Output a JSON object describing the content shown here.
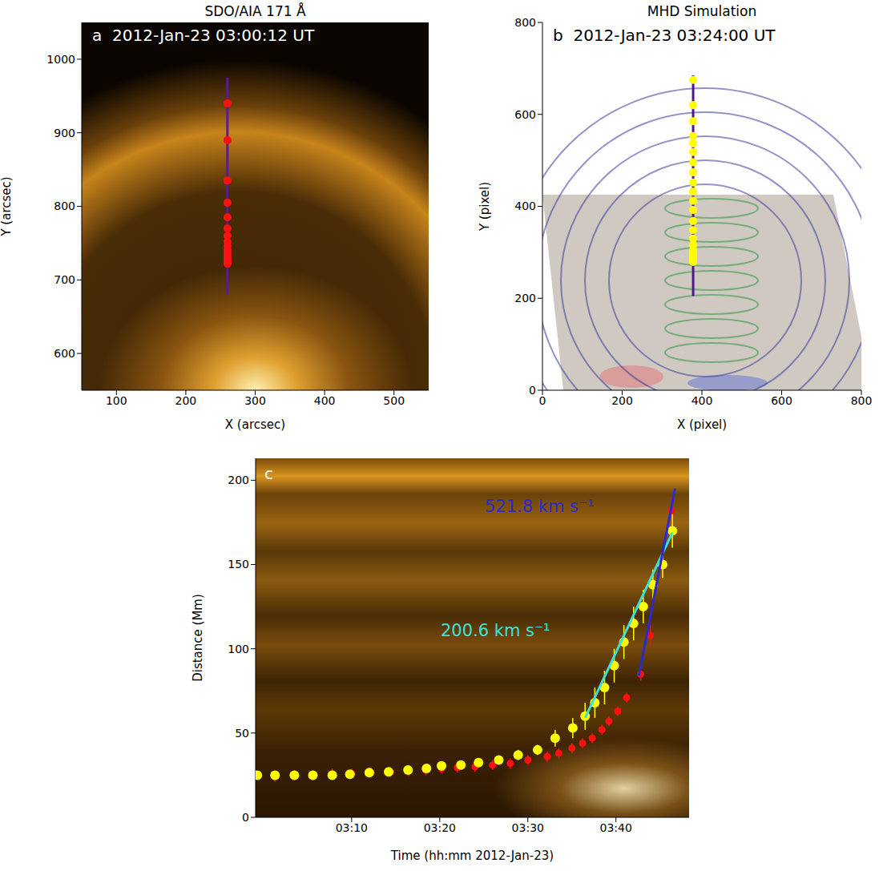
{
  "chart_data": [
    {
      "type": "scatter",
      "panel": "a",
      "title": "SDO/AIA 171 Å",
      "annotation": "2012-Jan-23 03:00:12 UT",
      "x_label": "X (arcsec)",
      "y_label": "Y (arcsec)",
      "xlim": [
        50,
        550
      ],
      "xticks": [
        100,
        200,
        300,
        400,
        500
      ],
      "ylim": [
        550,
        1050
      ],
      "yticks": [
        600,
        700,
        800,
        900,
        1000
      ],
      "series": [
        {
          "type": "line",
          "color": "#5a1e8c",
          "x": [
            260,
            260
          ],
          "values": [
            680,
            975
          ]
        },
        {
          "type": "scatter",
          "marker": "circle",
          "color": "#ff1010",
          "x": [
            260,
            260,
            260,
            260,
            260,
            260,
            260,
            260,
            260,
            260,
            260,
            260,
            260,
            260,
            260,
            260
          ],
          "values": [
            940,
            890,
            835,
            805,
            785,
            770,
            760,
            752,
            746,
            741,
            737,
            733,
            730,
            727,
            724,
            722
          ]
        }
      ]
    },
    {
      "type": "scatter",
      "panel": "b",
      "title": "MHD Simulation",
      "annotation": "2012-Jan-23 03:24:00 UT",
      "x_label": "X (pixel)",
      "y_label": "Y (pixel)",
      "xlim": [
        0,
        800
      ],
      "xticks": [
        0,
        200,
        400,
        600,
        800
      ],
      "ylim": [
        0,
        800
      ],
      "yticks": [
        0,
        200,
        400,
        600,
        800
      ],
      "series": [
        {
          "type": "line",
          "color": "#4b1a8a",
          "x": [
            378,
            378
          ],
          "values": [
            205,
            685
          ]
        },
        {
          "type": "scatter",
          "marker": "circle",
          "color": "#ffff00",
          "x": [
            378,
            378,
            378,
            378,
            378,
            378,
            378,
            378,
            378,
            378,
            378,
            378,
            378,
            378,
            378,
            378,
            378,
            378,
            378,
            378,
            378,
            378
          ],
          "values": [
            675,
            620,
            585,
            553,
            537,
            518,
            496,
            474,
            452,
            432,
            412,
            392,
            368,
            348,
            330,
            316,
            305,
            298,
            292,
            287,
            283,
            279
          ]
        }
      ]
    },
    {
      "type": "scatter",
      "panel": "c",
      "x_label": "Time (hh:mm 2012-Jan-23)",
      "y_label": "Distance (Mm)",
      "xlim": [
        -0.9,
        48.3
      ],
      "xticks": [
        {
          "value": 10,
          "label": "03:10"
        },
        {
          "value": 20,
          "label": "03:20"
        },
        {
          "value": 30,
          "label": "03:30"
        },
        {
          "value": 40,
          "label": "03:40"
        }
      ],
      "ylim": [
        0,
        213
      ],
      "yticks": [
        0,
        50,
        100,
        150,
        200
      ],
      "series": [
        {
          "type": "scatter",
          "marker": "circle",
          "color": "#ff1010",
          "x": [
            1.3,
            3.5,
            5.6,
            7.8,
            10,
            12.2,
            14.4,
            16.5,
            18.4,
            20.2,
            22,
            24,
            26,
            28,
            30,
            32.2,
            33.5,
            35,
            36.2,
            37.3,
            38.4,
            39.2,
            40.2,
            41.2,
            42.8,
            43.9,
            46.3
          ],
          "values": [
            24,
            25,
            25,
            26,
            26,
            26.5,
            27,
            27.5,
            28,
            29,
            29.5,
            30,
            31,
            32,
            34,
            36,
            38,
            41,
            44,
            47,
            52,
            57,
            63,
            71,
            85,
            108,
            182
          ],
          "errors": [
            3,
            3,
            3,
            3,
            3,
            3,
            3,
            3,
            3,
            3,
            3,
            3,
            3,
            3,
            3,
            3,
            3,
            3,
            3,
            3,
            3,
            3,
            3,
            3,
            4,
            6,
            8
          ]
        },
        {
          "type": "scatter",
          "marker": "circle",
          "color": "#ffff00",
          "x": [
            -0.7,
            1.3,
            3.5,
            5.6,
            7.8,
            9.8,
            12,
            14.2,
            16.4,
            18.5,
            20.2,
            22.4,
            24.4,
            26.7,
            28.9,
            31.1,
            33.1,
            35.1,
            36.5,
            37.6,
            38.7,
            39.8,
            40.9,
            42,
            43.1,
            44.2,
            45.3,
            46.4
          ],
          "values": [
            25,
            25,
            25,
            25,
            25,
            25.5,
            26.5,
            27,
            28,
            29,
            30.5,
            31,
            32.5,
            34,
            37,
            40,
            47,
            53,
            60,
            68,
            77,
            90,
            104,
            115,
            125,
            138,
            150,
            170
          ],
          "errors": [
            2,
            2,
            2,
            2,
            2,
            2,
            2,
            2,
            2,
            2,
            2,
            2,
            2,
            2,
            3,
            3,
            5,
            6,
            8,
            9,
            10,
            10,
            10,
            10,
            10,
            9,
            8,
            10
          ]
        },
        {
          "type": "line",
          "color": "#3de0d8",
          "x": [
            36.5,
            46.4
          ],
          "values": [
            59,
            169
          ],
          "annotation": "200.6 km s⁻¹"
        },
        {
          "type": "line",
          "color": "#2a2ad0",
          "x": [
            42.6,
            46.7
          ],
          "values": [
            84,
            195
          ],
          "annotation": "521.8 km s⁻¹"
        }
      ]
    }
  ]
}
